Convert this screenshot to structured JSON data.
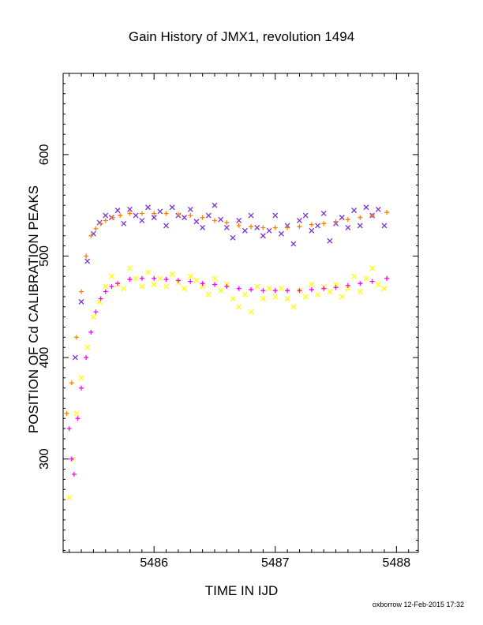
{
  "chart_data": {
    "type": "scatter",
    "title": "Gain History of JMX1, revolution 1494",
    "xlabel": "TIME IN IJD",
    "ylabel": "POSITION OF Cd CALIBRATION PEAKS",
    "xlim": [
      5485.25,
      5488.18
    ],
    "ylim": [
      208,
      680
    ],
    "xticks": [
      "5486",
      "5487",
      "5488"
    ],
    "yticks": [
      "300",
      "400",
      "500",
      "600"
    ],
    "grid": false,
    "colors": {
      "upper_scatter": "#7b2fd6",
      "upper_fit": "#ff8000",
      "lower_scatter": "#ffff00",
      "lower_fit": "#ff00ff"
    },
    "series": [
      {
        "marker": "x",
        "color": "#7b2fd6",
        "x": [
          5485.35,
          5485.4,
          5485.45,
          5485.5,
          5485.55,
          5485.6,
          5485.65,
          5485.7,
          5485.75,
          5485.8,
          5485.85,
          5485.9,
          5485.95,
          5486.0,
          5486.05,
          5486.1,
          5486.15,
          5486.2,
          5486.25,
          5486.3,
          5486.35,
          5486.4,
          5486.45,
          5486.5,
          5486.55,
          5486.6,
          5486.65,
          5486.7,
          5486.75,
          5486.8,
          5486.85,
          5486.9,
          5486.95,
          5487.0,
          5487.05,
          5487.1,
          5487.15,
          5487.2,
          5487.25,
          5487.3,
          5487.35,
          5487.4,
          5487.45,
          5487.5,
          5487.55,
          5487.6,
          5487.65,
          5487.7,
          5487.75,
          5487.8,
          5487.85,
          5487.9
        ],
        "y": [
          400,
          455,
          495,
          522,
          533,
          540,
          538,
          545,
          532,
          546,
          540,
          535,
          548,
          538,
          544,
          530,
          548,
          540,
          538,
          546,
          534,
          528,
          540,
          550,
          536,
          528,
          518,
          535,
          525,
          540,
          528,
          520,
          525,
          540,
          522,
          530,
          512,
          535,
          540,
          525,
          530,
          542,
          515,
          532,
          538,
          528,
          545,
          530,
          548,
          540,
          546,
          530
        ]
      },
      {
        "marker": "plus",
        "color": "#ff8000",
        "x": [
          5485.28,
          5485.32,
          5485.36,
          5485.4,
          5485.44,
          5485.48,
          5485.52,
          5485.56,
          5485.6,
          5485.66,
          5485.72,
          5485.8,
          5485.9,
          5486.0,
          5486.1,
          5486.2,
          5486.3,
          5486.4,
          5486.5,
          5486.6,
          5486.7,
          5486.8,
          5486.9,
          5487.0,
          5487.1,
          5487.2,
          5487.3,
          5487.4,
          5487.5,
          5487.6,
          5487.7,
          5487.8,
          5487.92
        ],
        "y": [
          345,
          375,
          420,
          465,
          500,
          520,
          527,
          532,
          535,
          538,
          540,
          542,
          542,
          542,
          542,
          541,
          540,
          538,
          535,
          533,
          530,
          529,
          528,
          528,
          528,
          529,
          531,
          532,
          534,
          536,
          538,
          540,
          543
        ]
      },
      {
        "marker": "x",
        "color": "#ffff00",
        "x": [
          5485.3,
          5485.33,
          5485.36,
          5485.4,
          5485.45,
          5485.5,
          5485.55,
          5485.6,
          5485.65,
          5485.7,
          5485.75,
          5485.8,
          5485.85,
          5485.9,
          5485.95,
          5486.0,
          5486.05,
          5486.1,
          5486.15,
          5486.2,
          5486.25,
          5486.3,
          5486.35,
          5486.4,
          5486.45,
          5486.5,
          5486.55,
          5486.6,
          5486.65,
          5486.7,
          5486.75,
          5486.8,
          5486.85,
          5486.9,
          5486.95,
          5487.0,
          5487.05,
          5487.1,
          5487.15,
          5487.2,
          5487.25,
          5487.3,
          5487.35,
          5487.4,
          5487.45,
          5487.5,
          5487.55,
          5487.6,
          5487.65,
          5487.7,
          5487.75,
          5487.8,
          5487.85,
          5487.9
        ],
        "y": [
          262,
          300,
          345,
          380,
          410,
          440,
          455,
          470,
          480,
          472,
          468,
          488,
          478,
          470,
          484,
          472,
          478,
          470,
          482,
          474,
          468,
          480,
          476,
          470,
          462,
          478,
          466,
          472,
          458,
          450,
          462,
          445,
          470,
          458,
          468,
          460,
          468,
          458,
          450,
          466,
          460,
          472,
          462,
          470,
          465,
          472,
          460,
          468,
          480,
          465,
          478,
          488,
          472,
          468
        ]
      },
      {
        "marker": "plus",
        "color": "#ff00ff",
        "x": [
          5485.3,
          5485.32,
          5485.34,
          5485.37,
          5485.4,
          5485.44,
          5485.48,
          5485.52,
          5485.56,
          5485.6,
          5485.65,
          5485.7,
          5485.8,
          5485.9,
          5486.0,
          5486.1,
          5486.2,
          5486.3,
          5486.4,
          5486.5,
          5486.6,
          5486.7,
          5486.8,
          5486.9,
          5487.0,
          5487.1,
          5487.2,
          5487.3,
          5487.4,
          5487.5,
          5487.6,
          5487.7,
          5487.8,
          5487.92
        ],
        "y": [
          330,
          300,
          285,
          340,
          370,
          400,
          425,
          445,
          458,
          465,
          470,
          473,
          477,
          478,
          478,
          477,
          476,
          475,
          473,
          472,
          470,
          468,
          467,
          466,
          466,
          466,
          466,
          467,
          468,
          469,
          471,
          473,
          475,
          478
        ]
      }
    ],
    "footer": "oxborrow 12-Feb-2015 17:32"
  }
}
